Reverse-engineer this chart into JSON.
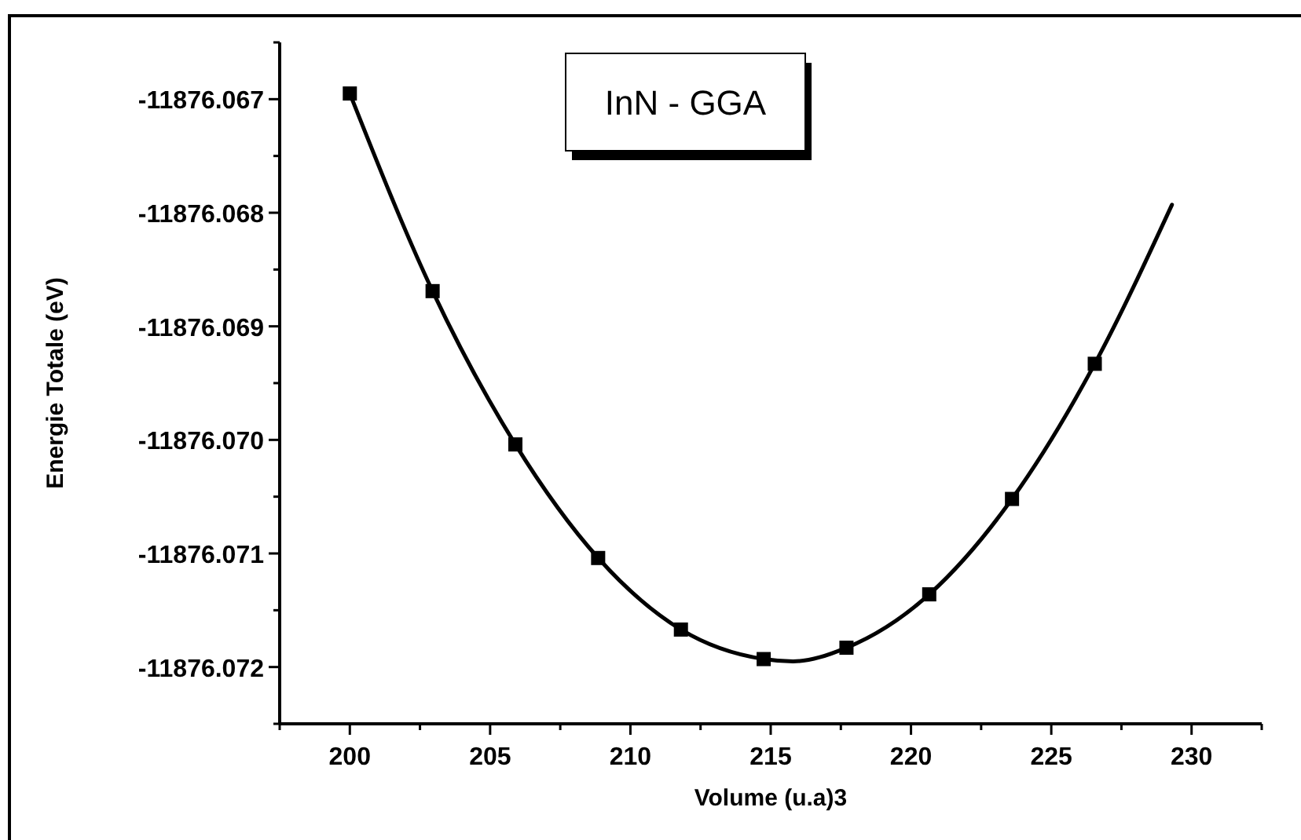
{
  "chart_data": {
    "type": "scatter",
    "title": "InN - GGA",
    "xlabel": "Volume (u.a)3",
    "ylabel": "Energie Totale (eV)",
    "xlim": [
      197.5,
      232.5
    ],
    "ylim": [
      -11876.0725,
      -11876.0665
    ],
    "xticks": [
      {
        "value": 197.5,
        "label": null
      },
      200,
      {
        "value": 202.5,
        "label": null
      },
      205,
      {
        "value": 207.5,
        "label": null
      },
      210,
      {
        "value": 212.5,
        "label": null
      },
      215,
      {
        "value": 217.5,
        "label": null
      },
      220,
      {
        "value": 222.5,
        "label": null
      },
      225,
      {
        "value": 227.5,
        "label": null
      },
      230,
      {
        "value": 232.5,
        "label": null
      }
    ],
    "yticks": [
      {
        "value": -11876.0725,
        "label": null
      },
      -11876.072,
      {
        "value": -11876.0715,
        "label": null
      },
      -11876.071,
      {
        "value": -11876.0705,
        "label": null
      },
      {
        "value": -11876.07,
        "label": "-11876.070"
      },
      {
        "value": -11876.0695,
        "label": null
      },
      -11876.069,
      {
        "value": -11876.0685,
        "label": null
      },
      -11876.068,
      {
        "value": -11876.0675,
        "label": null
      },
      -11876.067,
      {
        "value": -11876.0665,
        "label": null
      }
    ],
    "grid": false,
    "marker": "square",
    "series": [
      {
        "type": "line",
        "color": "#000000",
        "line_style": "solid",
        "marker": "none",
        "x": [
          200,
          202.95,
          205.9,
          208.85,
          211.8,
          214.75,
          215.8,
          217.7,
          220.65,
          223.6,
          226.55,
          229.3
        ],
        "values": [
          -11876.06695,
          -11876.06869,
          -11876.07004,
          -11876.07104,
          -11876.07167,
          -11876.07193,
          -11876.07195,
          -11876.07183,
          -11876.07136,
          -11876.07052,
          -11876.06933,
          -11876.06793
        ]
      },
      {
        "color": "#000000",
        "x": [
          200,
          202.95,
          205.9,
          208.85,
          211.8,
          214.75,
          217.7,
          220.65,
          223.6,
          226.55
        ],
        "values": [
          -11876.06695,
          -11876.06869,
          -11876.07004,
          -11876.07104,
          -11876.07167,
          -11876.07193,
          -11876.07183,
          -11876.07136,
          -11876.07052,
          -11876.06933
        ]
      }
    ]
  }
}
